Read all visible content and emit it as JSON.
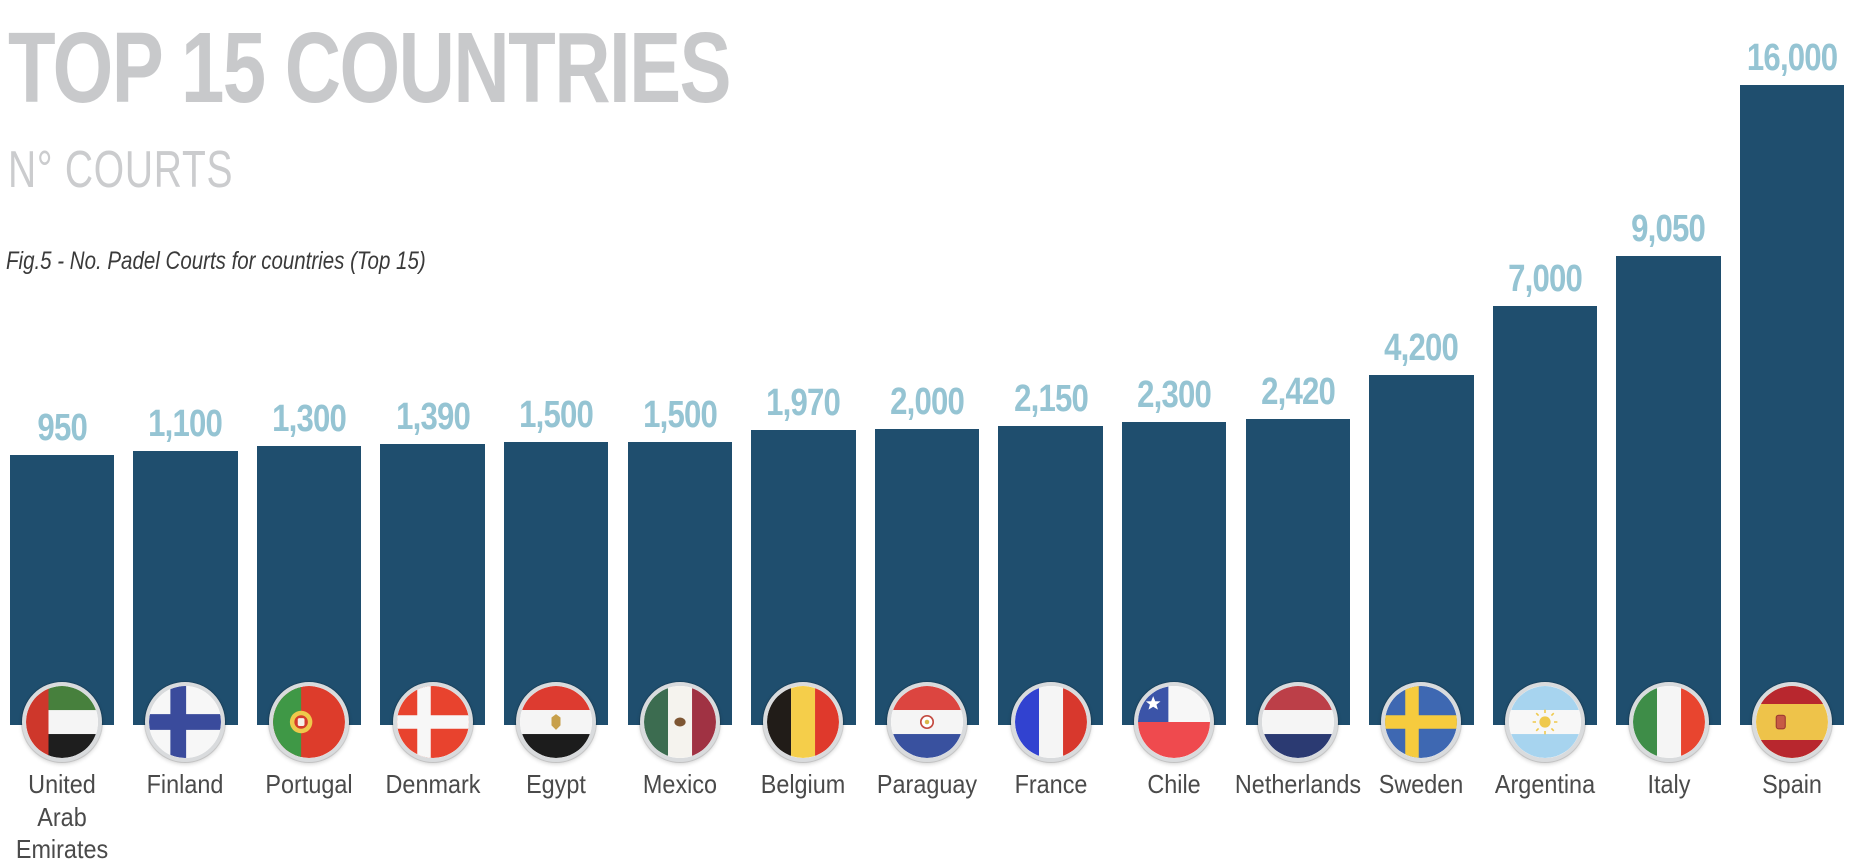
{
  "header": {
    "title": "TOP 15 COUNTRIES",
    "subtitle": "N° COURTS",
    "caption": "Fig.5 - No. Padel Courts for countries (Top 15)"
  },
  "colors": {
    "bar": "#1F4E6E",
    "value_label": "#95C4D3",
    "title": "#C8C9CB",
    "subtitle": "#CBCCCE",
    "caption": "#3A3A3A",
    "country_label": "#4A4A4A",
    "background": "#FFFFFF",
    "flag_ring": "#D9DBDD"
  },
  "chart_data": {
    "type": "bar",
    "title": "TOP 15 COUNTRIES",
    "subtitle": "N° COURTS",
    "caption": "Fig.5 - No. Padel Courts for countries (Top 15)",
    "ylabel": "N° Courts",
    "xlabel": "",
    "grid": false,
    "legend": false,
    "axes_hidden": true,
    "order": "ascending-by-value",
    "categories": [
      "United Arab Emirates",
      "Finland",
      "Portugal",
      "Denmark",
      "Egypt",
      "Mexico",
      "Belgium",
      "Paraguay",
      "France",
      "Chile",
      "Netherlands",
      "Sweden",
      "Argentina",
      "Italy",
      "Spain"
    ],
    "values": [
      950,
      1100,
      1300,
      1390,
      1500,
      1500,
      1970,
      2000,
      2150,
      2300,
      2420,
      4200,
      7000,
      9050,
      16000
    ],
    "bars": [
      {
        "country": "United Arab Emirates",
        "display_label": "United\nArab\nEmirates",
        "value": 950,
        "value_label": "950",
        "flag": "ae",
        "icon": "uae-flag-icon"
      },
      {
        "country": "Finland",
        "display_label": "Finland",
        "value": 1100,
        "value_label": "1,100",
        "flag": "fi",
        "icon": "finland-flag-icon"
      },
      {
        "country": "Portugal",
        "display_label": "Portugal",
        "value": 1300,
        "value_label": "1,300",
        "flag": "pt",
        "icon": "portugal-flag-icon"
      },
      {
        "country": "Denmark",
        "display_label": "Denmark",
        "value": 1390,
        "value_label": "1,390",
        "flag": "dk",
        "icon": "denmark-flag-icon"
      },
      {
        "country": "Egypt",
        "display_label": "Egypt",
        "value": 1500,
        "value_label": "1,500",
        "flag": "eg",
        "icon": "egypt-flag-icon"
      },
      {
        "country": "Mexico",
        "display_label": "Mexico",
        "value": 1500,
        "value_label": "1,500",
        "flag": "mx",
        "icon": "mexico-flag-icon"
      },
      {
        "country": "Belgium",
        "display_label": "Belgium",
        "value": 1970,
        "value_label": "1,970",
        "flag": "be",
        "icon": "belgium-flag-icon"
      },
      {
        "country": "Paraguay",
        "display_label": "Paraguay",
        "value": 2000,
        "value_label": "2,000",
        "flag": "py",
        "icon": "paraguay-flag-icon"
      },
      {
        "country": "France",
        "display_label": "France",
        "value": 2150,
        "value_label": "2,150",
        "flag": "fr",
        "icon": "france-flag-icon"
      },
      {
        "country": "Chile",
        "display_label": "Chile",
        "value": 2300,
        "value_label": "2,300",
        "flag": "cl",
        "icon": "chile-flag-icon"
      },
      {
        "country": "Netherlands",
        "display_label": "Netherlands",
        "value": 2420,
        "value_label": "2,420",
        "flag": "nl",
        "icon": "netherlands-flag-icon"
      },
      {
        "country": "Sweden",
        "display_label": "Sweden",
        "value": 4200,
        "value_label": "4,200",
        "flag": "se",
        "icon": "sweden-flag-icon"
      },
      {
        "country": "Argentina",
        "display_label": "Argentina",
        "value": 7000,
        "value_label": "7,000",
        "flag": "ar",
        "icon": "argentina-flag-icon"
      },
      {
        "country": "Italy",
        "display_label": "Italy",
        "value": 9050,
        "value_label": "9,050",
        "flag": "it",
        "icon": "italy-flag-icon"
      },
      {
        "country": "Spain",
        "display_label": "Spain",
        "value": 16000,
        "value_label": "16,000",
        "flag": "es",
        "icon": "spain-flag-icon"
      }
    ]
  }
}
